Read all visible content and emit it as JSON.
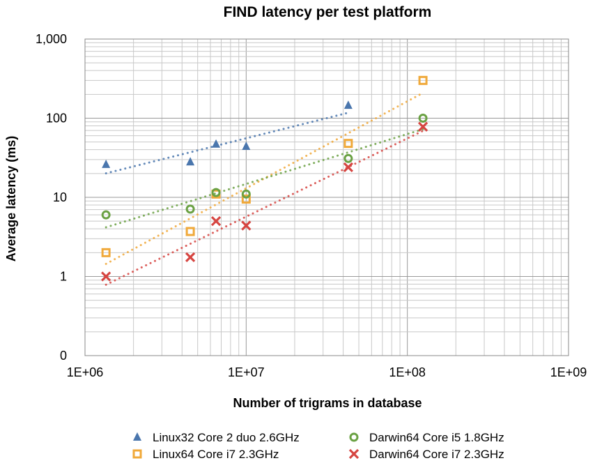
{
  "chart_data": {
    "type": "scatter",
    "title": "FIND latency per test platform",
    "xlabel": "Number of trigrams in database",
    "ylabel": "Average latency (ms)",
    "x_scale": "log",
    "y_scale": "log",
    "xlim": [
      1000000,
      1000000000
    ],
    "ylim": [
      0.1,
      1000
    ],
    "grid": true,
    "legend_position": "bottom",
    "x_tick_values": [
      1000000,
      10000000,
      100000000,
      1000000000
    ],
    "x_tick_labels": [
      "1E+06",
      "1E+07",
      "1E+08",
      "1E+09"
    ],
    "y_tick_values": [
      0.1,
      1,
      10,
      100,
      1000
    ],
    "y_tick_labels": [
      "0",
      "1",
      "10",
      "100",
      "1,000"
    ],
    "trendlines": "power",
    "series": [
      {
        "name": "Linux32 Core 2 duo 2.6GHz",
        "marker": "triangle",
        "color": "#4a76ad",
        "points": [
          [
            1350000,
            26
          ],
          [
            4500000,
            28
          ],
          [
            6500000,
            47
          ],
          [
            10000000,
            44
          ],
          [
            43000000,
            145
          ]
        ]
      },
      {
        "name": "Linux64 Core i7 2.3GHz",
        "marker": "square",
        "color": "#f0a93a",
        "points": [
          [
            1350000,
            2.0
          ],
          [
            4500000,
            3.7
          ],
          [
            6500000,
            11
          ],
          [
            10000000,
            9.5
          ],
          [
            43000000,
            48
          ],
          [
            125000000,
            300
          ]
        ]
      },
      {
        "name": "Darwin64 Core i5 1.8GHz",
        "marker": "circle",
        "color": "#6aa143",
        "points": [
          [
            1350000,
            6.0
          ],
          [
            4500000,
            7.1
          ],
          [
            6500000,
            11.5
          ],
          [
            10000000,
            11
          ],
          [
            43000000,
            31
          ],
          [
            125000000,
            100
          ]
        ]
      },
      {
        "name": "Darwin64 Core i7 2.3GHz",
        "marker": "cross",
        "color": "#d64541",
        "points": [
          [
            1350000,
            1.0
          ],
          [
            4500000,
            1.75
          ],
          [
            6500000,
            5.0
          ],
          [
            10000000,
            4.4
          ],
          [
            43000000,
            24
          ],
          [
            125000000,
            78
          ]
        ]
      }
    ]
  }
}
